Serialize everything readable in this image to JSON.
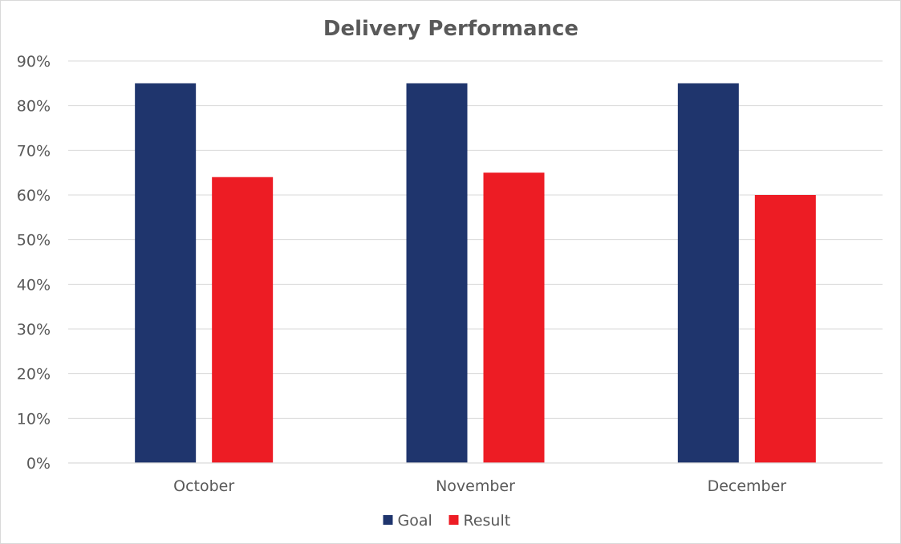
{
  "chart_data": {
    "type": "bar",
    "title": "Delivery Performance",
    "categories": [
      "October",
      "November",
      "December"
    ],
    "series": [
      {
        "name": "Goal",
        "values": [
          85,
          85,
          85
        ],
        "color": "#1f356d"
      },
      {
        "name": "Result",
        "values": [
          64,
          65,
          60
        ],
        "color": "#ed1c24"
      }
    ],
    "ylim": [
      0,
      90
    ],
    "yticks": [
      0,
      10,
      20,
      30,
      40,
      50,
      60,
      70,
      80,
      90
    ],
    "ytick_labels": [
      "0%",
      "10%",
      "20%",
      "30%",
      "40%",
      "50%",
      "60%",
      "70%",
      "80%",
      "90%"
    ],
    "grid": true,
    "legend_position": "bottom",
    "xlabel": "",
    "ylabel": ""
  }
}
